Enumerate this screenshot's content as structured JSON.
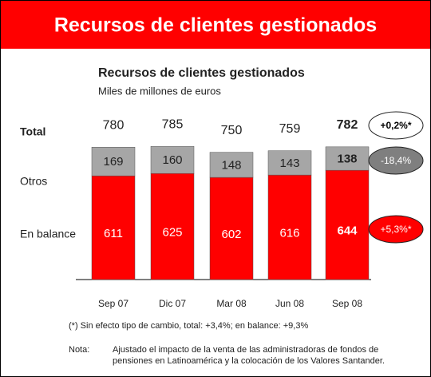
{
  "page_title": "Recursos de clientes gestionados",
  "chart_data": {
    "type": "stacked_bar",
    "title": "Recursos de clientes gestionados",
    "subtitle": "Miles de millones de euros",
    "categories": [
      "Sep 07",
      "Dic 07",
      "Mar 08",
      "Jun 08",
      "Sep 08"
    ],
    "series": [
      {
        "name": "En balance",
        "color": "#ff0000",
        "values": [
          611,
          625,
          602,
          616,
          644
        ]
      },
      {
        "name": "Otros",
        "color": "#a6a6a6",
        "values": [
          169,
          160,
          148,
          143,
          138
        ]
      }
    ],
    "total_label": "Total",
    "totals": [
      780,
      785,
      750,
      759,
      782
    ],
    "ylim": [
      0,
      800
    ],
    "annotations": [
      {
        "text": "+0,2%*",
        "color": "#ffffff"
      },
      {
        "text": "-18,4%",
        "color": "#7f7f7f"
      },
      {
        "text": "+5,3%*",
        "color": "#ff0000"
      }
    ]
  },
  "footnote": "(*) Sin efecto tipo de cambio, total: +3,4%; en balance: +9,3%",
  "note_label": "Nota:",
  "note_lines": [
    "Ajustado el impacto de la venta de las administradoras de fondos de",
    "pensiones en Latinoamérica y la colocación de los Valores Santander."
  ]
}
